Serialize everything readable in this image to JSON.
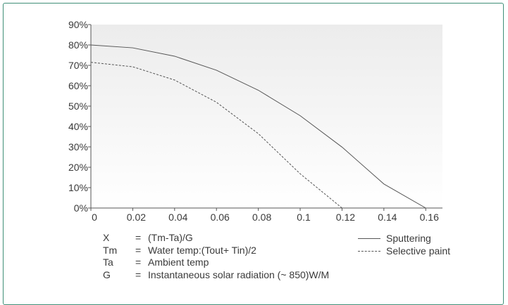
{
  "chart_data": {
    "type": "line",
    "title": "",
    "xlabel": "",
    "ylabel": "",
    "xlim": [
      0,
      0.168
    ],
    "ylim": [
      0,
      90
    ],
    "x_ticks": [
      "0",
      "0.02",
      "0.04",
      "0.06",
      "0.08",
      "0.1",
      "0.12",
      "0.14",
      "0.16"
    ],
    "x_tick_values": [
      0,
      0.02,
      0.04,
      0.06,
      0.08,
      0.1,
      0.12,
      0.14,
      0.16
    ],
    "y_ticks": [
      "0%",
      "10%",
      "20%",
      "30%",
      "40%",
      "50%",
      "60%",
      "70%",
      "80%",
      "90%"
    ],
    "y_tick_values": [
      0,
      10,
      20,
      30,
      40,
      50,
      60,
      70,
      80,
      90
    ],
    "grid": false,
    "series": [
      {
        "name": "Sputtering",
        "style": "solid",
        "x": [
          0,
          0.02,
          0.04,
          0.06,
          0.08,
          0.1,
          0.12,
          0.14,
          0.16,
          0.165
        ],
        "y": [
          80,
          78.6,
          74.5,
          67.6,
          57.8,
          45.3,
          29.9,
          11.8,
          0.0,
          0
        ]
      },
      {
        "name": "Selective paint",
        "style": "dashed",
        "x": [
          0,
          0.02,
          0.04,
          0.06,
          0.08,
          0.1,
          0.12,
          0.127
        ],
        "y": [
          71.5,
          69.3,
          62.8,
          51.9,
          36.5,
          16.8,
          0.0,
          0
        ]
      }
    ],
    "legend_position": "bottom-right"
  },
  "colors": {
    "frame": "#3f8f78",
    "plot_bg_top": "#ececec",
    "plot_bg_bottom": "#ffffff",
    "line": "#555555",
    "text": "#3a3a3a"
  },
  "definitions": [
    {
      "symbol": "X",
      "eq": "=",
      "text": "(Tm-Ta)/G"
    },
    {
      "symbol": "Tm",
      "eq": "=",
      "text": "Water temp:(Tout+ Tin)/2"
    },
    {
      "symbol": "Ta",
      "eq": "=",
      "text": "Ambient temp"
    },
    {
      "symbol": "G",
      "eq": "=",
      "text": "Instantaneous solar radiation (~ 850)W/M"
    }
  ]
}
